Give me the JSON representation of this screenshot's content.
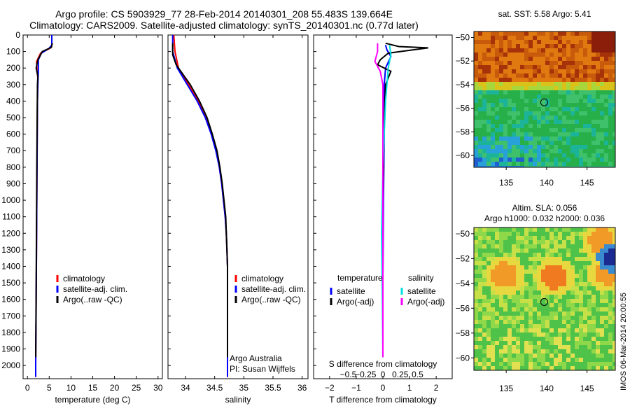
{
  "titles": {
    "line1": "Argo profile: CS 5903929_77 28-Feb-2014 20140301_208 55.483S 139.664E",
    "line2": "Climatology: CARS2009. Satellite-adjusted climatology: synTS_20140301.nc (0.77d later)"
  },
  "side_label": "IMOS 06-Mar-2014 20:00:55",
  "colors": {
    "climatology": "#ff0000",
    "satellite": "#0000ff",
    "argo": "#000000",
    "salinity_satellite": "#00e0e0",
    "salinity_argo": "#ff00ff"
  },
  "chart_data": [
    {
      "type": "line",
      "xlabel": "temperature (deg C)",
      "ylabel": "",
      "xlim": [
        -1,
        31
      ],
      "ylim": [
        2080,
        0
      ],
      "xticks": [
        0,
        5,
        10,
        15,
        20,
        25,
        30
      ],
      "xtick_labels": [
        "0",
        "5",
        "10",
        "15",
        "20",
        "25",
        "30"
      ],
      "yticks": [
        0,
        100,
        200,
        300,
        400,
        500,
        600,
        700,
        800,
        900,
        1000,
        1100,
        1200,
        1300,
        1400,
        1500,
        1600,
        1700,
        1800,
        1900,
        2000
      ],
      "ytick_labels": [
        "0",
        "100",
        "200",
        "300",
        "400",
        "500",
        "600",
        "700",
        "800",
        "900",
        "1000",
        "1100",
        "1200",
        "1300",
        "1400",
        "1500",
        "1600",
        "1700",
        "1800",
        "1900",
        "2000"
      ],
      "legend": [
        "climatology",
        "satellite-adj. clim.",
        "Argo(..raw -QC)"
      ],
      "series": [
        {
          "name": "climatology",
          "color": "red",
          "points": [
            [
              5.6,
              0
            ],
            [
              5.6,
              60
            ],
            [
              5.2,
              80
            ],
            [
              3.0,
              110
            ],
            [
              2.1,
              160
            ],
            [
              2.2,
              220
            ],
            [
              2.4,
              260
            ],
            [
              2.3,
              400
            ],
            [
              2.2,
              800
            ],
            [
              2.1,
              1200
            ],
            [
              2.0,
              1600
            ],
            [
              1.9,
              2000
            ],
            [
              1.9,
              2070
            ]
          ]
        },
        {
          "name": "satellite-adj. clim.",
          "color": "blue",
          "points": [
            [
              5.6,
              0
            ],
            [
              5.6,
              60
            ],
            [
              5.0,
              80
            ],
            [
              3.2,
              110
            ],
            [
              2.5,
              150
            ],
            [
              2.5,
              220
            ],
            [
              2.4,
              300
            ],
            [
              2.3,
              400
            ],
            [
              2.2,
              800
            ],
            [
              2.1,
              1200
            ],
            [
              2.0,
              1600
            ],
            [
              1.9,
              2000
            ],
            [
              1.9,
              2070
            ]
          ]
        },
        {
          "name": "Argo(..raw -QC)",
          "color": "black",
          "points": [
            [
              5.7,
              50
            ],
            [
              5.5,
              75
            ],
            [
              3.4,
              100
            ],
            [
              2.4,
              150
            ],
            [
              2.0,
              200
            ],
            [
              2.4,
              250
            ],
            [
              2.3,
              300
            ],
            [
              2.2,
              600
            ],
            [
              2.1,
              1000
            ],
            [
              2.0,
              1500
            ],
            [
              1.9,
              1950
            ]
          ]
        }
      ]
    },
    {
      "type": "line",
      "xlabel": "salinity",
      "ylabel": "",
      "xlim": [
        33.7,
        36.1
      ],
      "ylim": [
        2080,
        0
      ],
      "xticks": [
        34,
        34.5,
        35,
        35.5,
        36
      ],
      "xtick_labels": [
        "34",
        "34.5",
        "35",
        "35.5",
        "36"
      ],
      "legend": [
        "climatology",
        "satellite-adj. clim.",
        "Argo(..raw -QC)"
      ],
      "annotations": [
        "Argo Australia",
        "PI: Susan Wijffels"
      ],
      "series": [
        {
          "name": "climatology",
          "color": "red",
          "points": [
            [
              33.8,
              0
            ],
            [
              33.82,
              100
            ],
            [
              33.88,
              200
            ],
            [
              34.05,
              300
            ],
            [
              34.22,
              400
            ],
            [
              34.36,
              500
            ],
            [
              34.45,
              600
            ],
            [
              34.53,
              700
            ],
            [
              34.58,
              800
            ],
            [
              34.62,
              900
            ],
            [
              34.65,
              1000
            ],
            [
              34.68,
              1100
            ],
            [
              34.7,
              1200
            ],
            [
              34.71,
              1300
            ],
            [
              34.72,
              1400
            ],
            [
              34.72,
              1600
            ],
            [
              34.72,
              1800
            ],
            [
              34.72,
              2000
            ],
            [
              34.72,
              2070
            ]
          ]
        },
        {
          "name": "satellite-adj. clim.",
          "color": "blue",
          "points": [
            [
              33.78,
              0
            ],
            [
              33.78,
              100
            ],
            [
              33.86,
              200
            ],
            [
              34.03,
              300
            ],
            [
              34.2,
              400
            ],
            [
              34.34,
              500
            ],
            [
              34.44,
              600
            ],
            [
              34.52,
              700
            ],
            [
              34.58,
              800
            ],
            [
              34.62,
              900
            ],
            [
              34.65,
              1000
            ],
            [
              34.68,
              1100
            ],
            [
              34.7,
              1200
            ],
            [
              34.71,
              1300
            ],
            [
              34.72,
              1400
            ],
            [
              34.72,
              1600
            ],
            [
              34.72,
              1800
            ],
            [
              34.72,
              2000
            ],
            [
              34.72,
              2070
            ]
          ]
        },
        {
          "name": "Argo(..raw -QC)",
          "color": "black",
          "points": [
            [
              33.78,
              50
            ],
            [
              33.78,
              120
            ],
            [
              33.84,
              180
            ],
            [
              33.9,
              210
            ],
            [
              34.08,
              300
            ],
            [
              34.24,
              400
            ],
            [
              34.37,
              500
            ],
            [
              34.46,
              600
            ],
            [
              34.54,
              700
            ],
            [
              34.59,
              800
            ],
            [
              34.63,
              900
            ],
            [
              34.66,
              1000
            ],
            [
              34.69,
              1100
            ],
            [
              34.7,
              1200
            ],
            [
              34.71,
              1300
            ],
            [
              34.72,
              1400
            ],
            [
              34.72,
              1600
            ],
            [
              34.72,
              1950
            ]
          ]
        }
      ]
    },
    {
      "type": "line",
      "xlabel": "T difference from climatology",
      "ylabel": "",
      "xlim": [
        -2.6,
        2.6
      ],
      "ylim": [
        2080,
        0
      ],
      "xticks": [
        -2,
        -1,
        0,
        1,
        2
      ],
      "xtick_labels": [
        "−2",
        "−1",
        "0",
        "1",
        "2"
      ],
      "top_scale_label": "S difference from climatology",
      "top_scale_ticks": [
        "−0.5",
        "−0.25",
        "0",
        "0.25",
        "0.5"
      ],
      "legend_headers": [
        "temperature",
        "salinity"
      ],
      "legend": [
        "satellite",
        "Argo(-adj)",
        "satellite",
        "Argo(-adj)"
      ],
      "series": [
        {
          "name": "satellite",
          "color": "blue",
          "points": [
            [
              0.1,
              60
            ],
            [
              0.15,
              90
            ],
            [
              0.3,
              130
            ],
            [
              0.1,
              200
            ],
            [
              0.05,
              300
            ],
            [
              0.05,
              600
            ],
            [
              0.02,
              1000
            ],
            [
              0.0,
              1500
            ],
            [
              0.0,
              1950
            ]
          ]
        },
        {
          "name": "Argo(-adj)",
          "color": "black",
          "points": [
            [
              0.1,
              50
            ],
            [
              0.6,
              70
            ],
            [
              1.7,
              78
            ],
            [
              0.9,
              95
            ],
            [
              0.2,
              110
            ],
            [
              -0.1,
              150
            ],
            [
              -0.2,
              180
            ],
            [
              0.3,
              220
            ],
            [
              0.1,
              300
            ],
            [
              0.05,
              500
            ],
            [
              0.0,
              1000
            ],
            [
              0.0,
              1950
            ]
          ]
        },
        {
          "name": "satellite",
          "color": "cyan",
          "points": [
            [
              0.25,
              60
            ],
            [
              0.3,
              120
            ],
            [
              0.2,
              200
            ],
            [
              0.1,
              400
            ],
            [
              0.0,
              800
            ],
            [
              -0.05,
              1200
            ],
            [
              -0.02,
              1600
            ],
            [
              0.0,
              1950
            ]
          ]
        },
        {
          "name": "Argo(-adj)",
          "color": "magenta",
          "points": [
            [
              -0.2,
              50
            ],
            [
              -0.2,
              100
            ],
            [
              -0.3,
              160
            ],
            [
              -0.1,
              220
            ],
            [
              0.0,
              300
            ],
            [
              0.0,
              500
            ],
            [
              0.0,
              1950
            ]
          ]
        }
      ]
    },
    {
      "type": "heatmap",
      "title": "sat. SST: 5.58 Argo: 5.41",
      "xlim": [
        131,
        148.5
      ],
      "ylim": [
        -61,
        -49.5
      ],
      "xticks": [
        135,
        140,
        145
      ],
      "xtick_labels": [
        "135",
        "140",
        "145"
      ],
      "yticks": [
        -50,
        -52,
        -54,
        -56,
        -58,
        -60
      ],
      "ytick_labels": [
        "−50",
        "−52",
        "−54",
        "−56",
        "−58",
        "−60"
      ],
      "marker": [
        139.7,
        -55.5
      ]
    },
    {
      "type": "heatmap",
      "title": "Altim. SLA: 0.056",
      "subtitle": "Argo h1000: 0.032 h2000: 0.036",
      "xlim": [
        131,
        148.5
      ],
      "ylim": [
        -61,
        -49.5
      ],
      "xticks": [
        135,
        140,
        145
      ],
      "xtick_labels": [
        "135",
        "140",
        "145"
      ],
      "yticks": [
        -50,
        -52,
        -54,
        -56,
        -58,
        -60
      ],
      "ytick_labels": [
        "−50",
        "−52",
        "−54",
        "−56",
        "−58",
        "−60"
      ],
      "marker": [
        139.7,
        -55.5
      ]
    }
  ]
}
